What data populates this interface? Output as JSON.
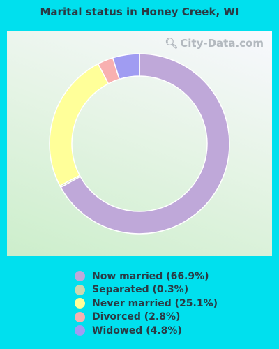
{
  "chart_data": {
    "type": "pie",
    "title": "Marital status in Honey Creek, WI",
    "watermark": "City-Data.com",
    "donut": true,
    "categories": [
      "Now married",
      "Separated",
      "Never married",
      "Divorced",
      "Widowed"
    ],
    "values": [
      66.9,
      0.3,
      25.1,
      2.8,
      4.8
    ],
    "colors": [
      "#bfa8d9",
      "#cdd7b0",
      "#ffff99",
      "#f8b0b0",
      "#a09cf2"
    ],
    "legend": [
      {
        "label": "Now married (66.9%)",
        "color": "#bfa8d9"
      },
      {
        "label": "Separated (0.3%)",
        "color": "#cdd7b0"
      },
      {
        "label": "Never married (25.1%)",
        "color": "#ffff99"
      },
      {
        "label": "Divorced (2.8%)",
        "color": "#f8b0b0"
      },
      {
        "label": "Widowed (4.8%)",
        "color": "#a09cf2"
      }
    ]
  }
}
